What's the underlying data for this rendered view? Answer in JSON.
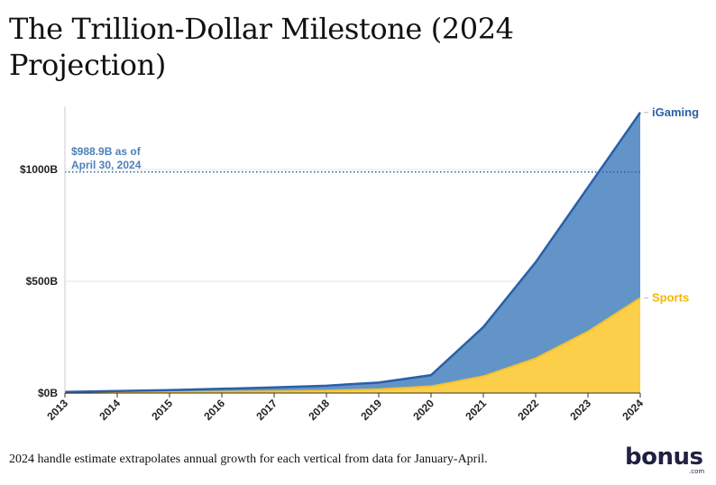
{
  "page": {
    "title": "The Trillion-Dollar Milestone (2024 Projection)",
    "footnote": "2024 handle estimate extrapolates annual growth for each vertical from data for January-April."
  },
  "brand": {
    "word": "bonus",
    "suffix": ".com",
    "accent_color": "#2a5fa8"
  },
  "chart_data": {
    "type": "area",
    "stacked": true,
    "x": [
      "2013",
      "2014",
      "2015",
      "2016",
      "2017",
      "2018",
      "2019",
      "2020",
      "2021",
      "2022",
      "2023",
      "2024"
    ],
    "series": [
      {
        "name": "Sports",
        "color": "#fccf4a",
        "values": [
          0,
          2,
          4,
          6,
          8,
          11,
          17,
          30,
          75,
          155,
          275,
          425
        ]
      },
      {
        "name": "iGaming",
        "color": "#6394c8",
        "values": [
          5,
          7,
          9,
          13,
          17,
          22,
          30,
          50,
          220,
          430,
          645,
          830
        ]
      }
    ],
    "total_color": "#2a5fa8",
    "yticks": [
      {
        "value": 0,
        "label": "$0B"
      },
      {
        "value": 500,
        "label": "$500B"
      },
      {
        "value": 1000,
        "label": "$1000B"
      }
    ],
    "ylim": [
      0,
      1300
    ],
    "grid": true,
    "reference_line": {
      "value": 988.9,
      "label_line1": "$988.9B as of",
      "label_line2": "April 30, 2024",
      "color": "#2a5fa8"
    },
    "title": "",
    "xlabel": "",
    "ylabel": ""
  }
}
